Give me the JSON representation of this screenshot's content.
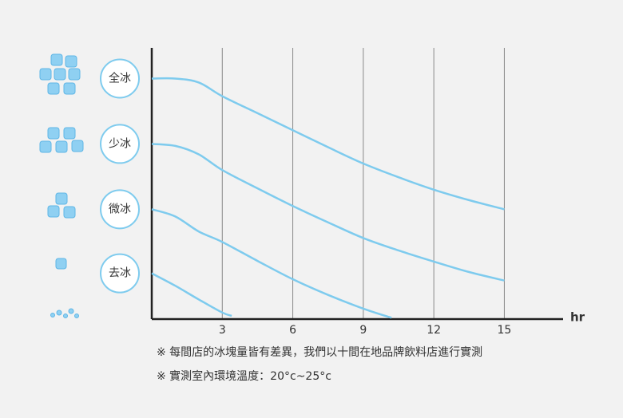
{
  "chart_data": {
    "type": "line",
    "x_label": "hr",
    "xlim": [
      0,
      17.5
    ],
    "xticks": [
      3,
      6,
      9,
      12,
      15
    ],
    "ylim": [
      0,
      4.15
    ],
    "grid": true,
    "series": [
      {
        "name": "全冰",
        "color": "#7ecbee",
        "x": [
          0,
          1,
          2,
          3,
          4.5,
          6,
          7.5,
          9,
          10.5,
          12,
          13.5,
          15
        ],
        "values": [
          3.68,
          3.68,
          3.62,
          3.41,
          3.15,
          2.89,
          2.63,
          2.38,
          2.17,
          1.98,
          1.82,
          1.68
        ]
      },
      {
        "name": "少冰",
        "color": "#7ecbee",
        "x": [
          0,
          1,
          2,
          3,
          4.5,
          6,
          7.5,
          9,
          10.5,
          12,
          13.5,
          15
        ],
        "values": [
          2.68,
          2.65,
          2.52,
          2.28,
          2.0,
          1.73,
          1.48,
          1.24,
          1.05,
          0.88,
          0.72,
          0.59
        ]
      },
      {
        "name": "微冰",
        "color": "#7ecbee",
        "x": [
          0,
          1,
          2,
          3,
          4.5,
          6,
          7.5,
          9,
          10.2
        ],
        "values": [
          1.68,
          1.57,
          1.34,
          1.18,
          0.89,
          0.61,
          0.37,
          0.16,
          0.02
        ]
      },
      {
        "name": "去冰",
        "color": "#7ecbee",
        "x": [
          0,
          1,
          2,
          3,
          3.4
        ],
        "values": [
          0.7,
          0.51,
          0.3,
          0.1,
          0.05
        ]
      }
    ],
    "notes": [
      "※ 每間店的冰塊量皆有差異，我們以十間在地品牌飲料店進行實測",
      "※ 實測室內環境溫度：20°c~25°c"
    ]
  }
}
